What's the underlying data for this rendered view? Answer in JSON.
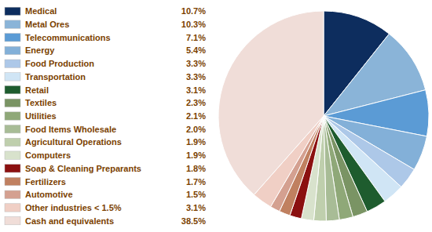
{
  "chart_data": {
    "type": "pie",
    "categories": [
      "Medical",
      "Metal Ores",
      "Telecommunications",
      "Energy",
      "Food Production",
      "Transportation",
      "Retail",
      "Textiles",
      "Utilities",
      "Food Items Wholesale",
      "Agricultural Operations",
      "Computers",
      "Soap & Cleaning Preparants",
      "Fertilizers",
      "Automotive",
      "Other industries < 1.5%",
      "Cash and equivalents"
    ],
    "values": [
      10.7,
      10.3,
      7.1,
      5.4,
      3.3,
      3.3,
      3.1,
      2.3,
      2.1,
      2.0,
      1.9,
      1.9,
      1.8,
      1.7,
      1.5,
      3.1,
      38.5
    ],
    "value_labels": [
      "10.7%",
      "10.3%",
      "7.1%",
      "5.4%",
      "3.3%",
      "3.3%",
      "3.1%",
      "2.3%",
      "2.1%",
      "2.0%",
      "1.9%",
      "1.9%",
      "1.8%",
      "1.7%",
      "1.5%",
      "3.1%",
      "38.5%"
    ],
    "colors": [
      "#0d2d5e",
      "#8ab4d8",
      "#5b9bd5",
      "#83b0d8",
      "#adc8e8",
      "#d0e5f5",
      "#1e5c2e",
      "#7a9464",
      "#8fa878",
      "#a8bc96",
      "#bfcfad",
      "#d8e2cc",
      "#8b1010",
      "#c08060",
      "#d4a090",
      "#f0cfc5",
      "#f0ddd8"
    ],
    "legend": "left"
  }
}
